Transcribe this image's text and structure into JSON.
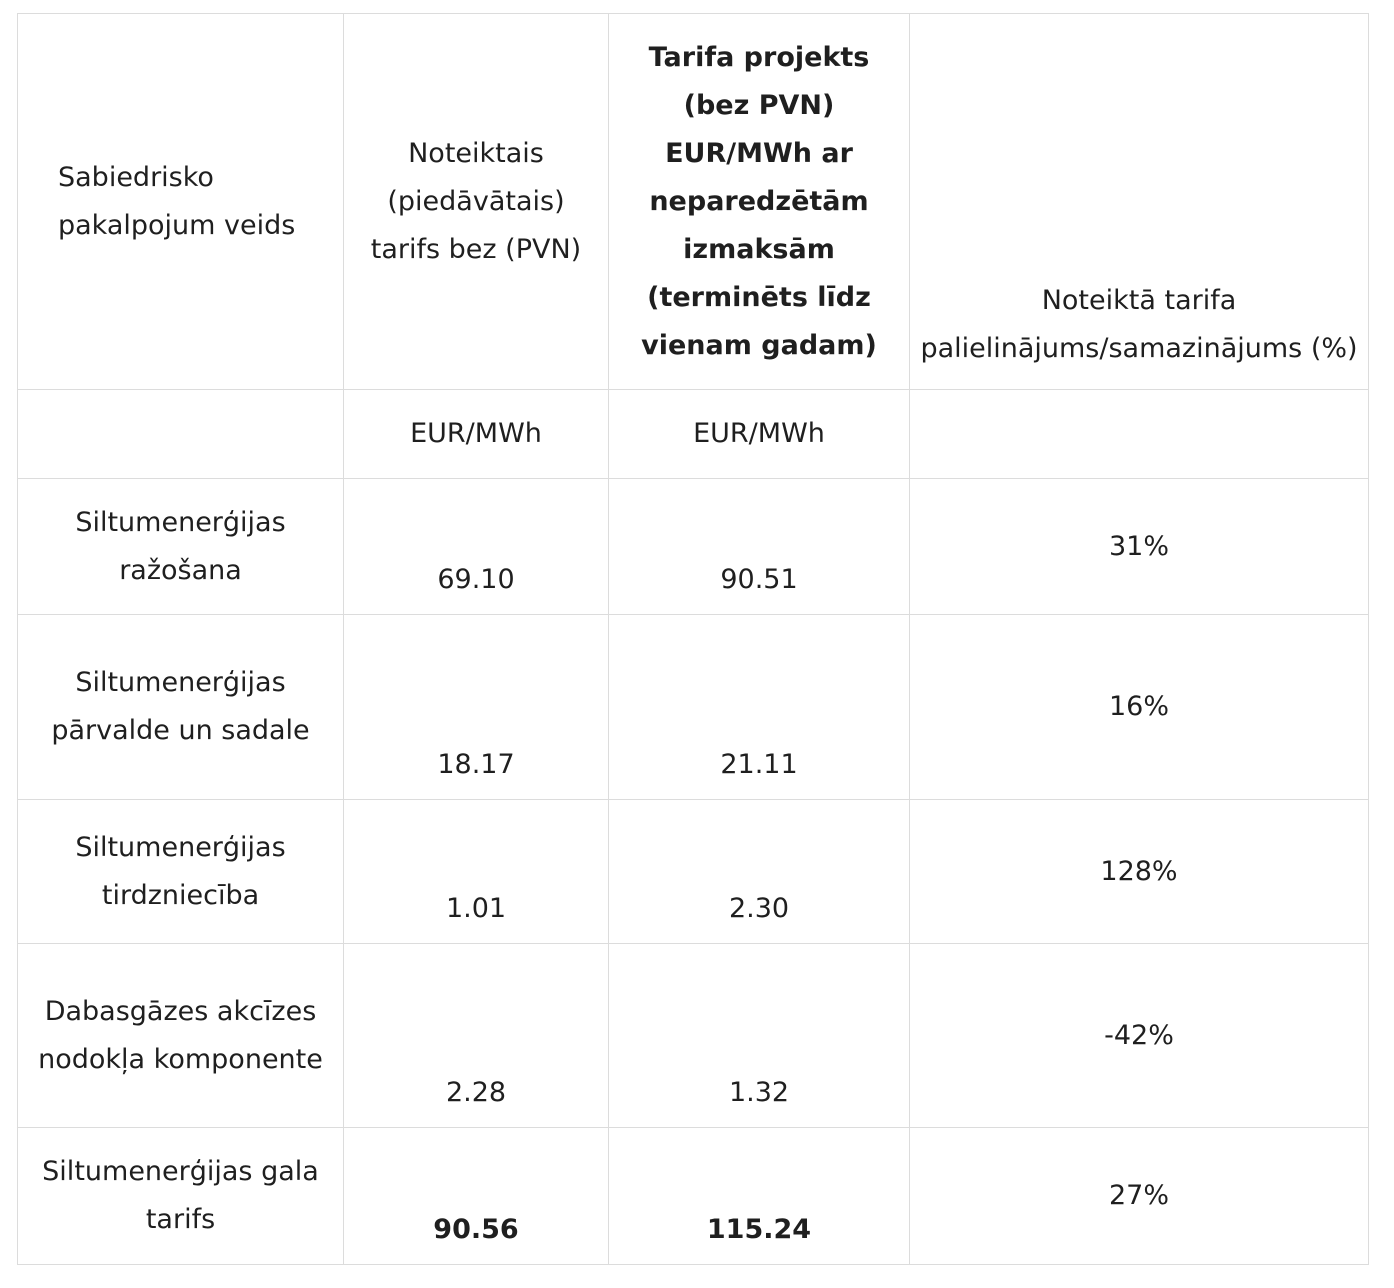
{
  "headers": {
    "service_type": "Sabiedrisko pakalpojum veids",
    "set_tariff": "Noteiktais (piedāvātais) tarifs bez (PVN)",
    "draft_tariff": "Tarifa projekts (bez PVN) EUR/MWh ar neparedzētām izmaksām (terminēts līdz vienam gadam)",
    "change_pct": "Noteiktā tarifa palielinājums/samazinājums (%)"
  },
  "units": {
    "service_type": "",
    "set_tariff": "EUR/MWh",
    "draft_tariff": "EUR/MWh",
    "change_pct": ""
  },
  "rows": [
    {
      "service": "Siltumenerģijas ražošana",
      "set_tariff": "69.10",
      "draft_tariff": "90.51",
      "change_pct": "31%"
    },
    {
      "service": "Siltumenerģijas pārvalde un sadale",
      "set_tariff": "18.17",
      "draft_tariff": "21.11",
      "change_pct": "16%"
    },
    {
      "service": "Siltumenerģijas tirdzniecība",
      "set_tariff": "1.01",
      "draft_tariff": "2.30",
      "change_pct": "128%"
    },
    {
      "service": "Dabasgāzes akcīzes nodokļa komponente",
      "set_tariff": "2.28",
      "draft_tariff": "1.32",
      "change_pct": "-42%"
    },
    {
      "service": "Siltumenerģijas gala tarifs",
      "set_tariff": "90.56",
      "draft_tariff": "115.24",
      "change_pct": "27%"
    }
  ]
}
